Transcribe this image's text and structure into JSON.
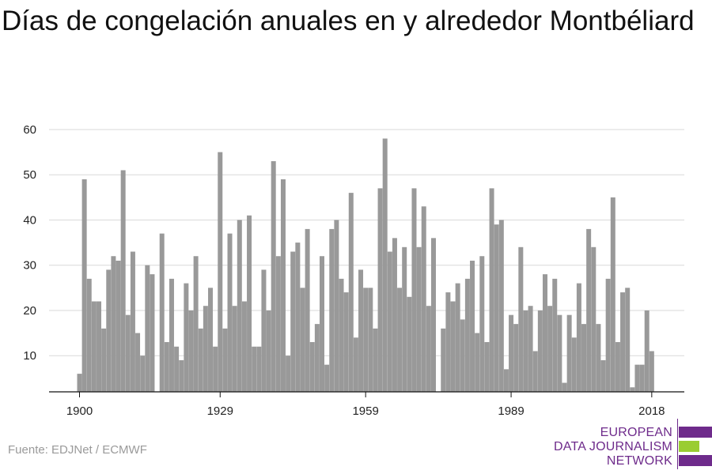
{
  "title": "Días de congelación anuales en y alrededor Montbéliard",
  "source": "Fuente: EDJNet / ECMWF",
  "logo": {
    "lines": [
      "EUROPEAN",
      "DATA JOURNALISM",
      "NETWORK"
    ],
    "colors": {
      "purple": "#6e2b8b",
      "green": "#9acd32"
    }
  },
  "chart_data": {
    "type": "bar",
    "title": "Días de congelación anuales en y alrededor Montbéliard",
    "xlabel": "",
    "ylabel": "",
    "x": [
      1900,
      1901,
      1902,
      1903,
      1904,
      1905,
      1906,
      1907,
      1908,
      1909,
      1910,
      1911,
      1912,
      1913,
      1914,
      1915,
      1916,
      1917,
      1918,
      1919,
      1920,
      1921,
      1922,
      1923,
      1924,
      1925,
      1926,
      1927,
      1928,
      1929,
      1930,
      1931,
      1932,
      1933,
      1934,
      1935,
      1936,
      1937,
      1938,
      1939,
      1940,
      1941,
      1942,
      1943,
      1944,
      1945,
      1946,
      1947,
      1948,
      1949,
      1950,
      1951,
      1952,
      1953,
      1954,
      1955,
      1956,
      1957,
      1958,
      1959,
      1960,
      1961,
      1962,
      1963,
      1964,
      1965,
      1966,
      1967,
      1968,
      1969,
      1970,
      1971,
      1972,
      1973,
      1974,
      1975,
      1976,
      1977,
      1978,
      1979,
      1980,
      1981,
      1982,
      1983,
      1984,
      1985,
      1986,
      1987,
      1988,
      1989,
      1990,
      1991,
      1992,
      1993,
      1994,
      1995,
      1996,
      1997,
      1998,
      1999,
      2000,
      2001,
      2002,
      2003,
      2004,
      2005,
      2006,
      2007,
      2008,
      2009,
      2010,
      2011,
      2012,
      2013,
      2014,
      2015,
      2016,
      2017,
      2018
    ],
    "values": [
      6,
      49,
      27,
      22,
      22,
      16,
      29,
      32,
      31,
      51,
      19,
      33,
      15,
      10,
      30,
      28,
      0,
      37,
      13,
      27,
      12,
      9,
      26,
      20,
      32,
      16,
      21,
      25,
      12,
      55,
      16,
      37,
      21,
      40,
      22,
      41,
      12,
      12,
      29,
      20,
      53,
      32,
      49,
      10,
      33,
      35,
      25,
      38,
      13,
      17,
      32,
      8,
      38,
      40,
      27,
      24,
      46,
      14,
      29,
      25,
      25,
      16,
      47,
      58,
      33,
      36,
      25,
      34,
      23,
      47,
      34,
      43,
      21,
      36,
      0,
      16,
      24,
      22,
      26,
      18,
      27,
      31,
      15,
      32,
      13,
      47,
      39,
      40,
      7,
      19,
      17,
      34,
      20,
      21,
      11,
      20,
      28,
      21,
      27,
      19,
      4,
      19,
      14,
      26,
      17,
      38,
      34,
      17,
      9,
      27,
      45,
      13,
      24,
      25,
      3,
      8,
      8,
      20,
      11
    ],
    "xticks": [
      1900,
      1929,
      1959,
      1989,
      2018
    ],
    "yticks": [
      10,
      20,
      30,
      40,
      50,
      60
    ],
    "ylim": [
      2,
      62
    ],
    "bar_color": "#999999",
    "grid": true,
    "legend": "none"
  }
}
